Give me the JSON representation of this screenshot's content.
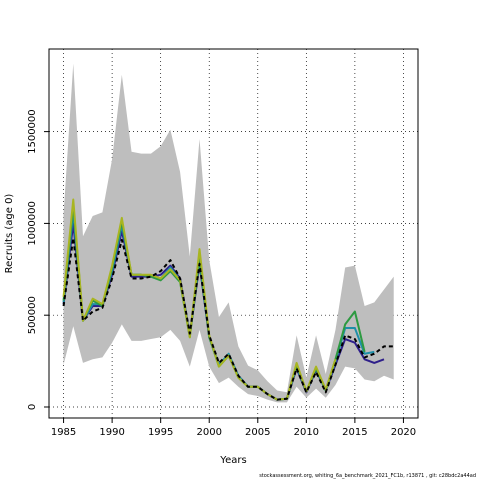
{
  "chart_data": {
    "type": "line",
    "title": "",
    "xlabel": "Years",
    "ylabel": "Recruits (age 0)",
    "xlim": [
      1983.5,
      2021.5
    ],
    "ylim": [
      -60000,
      1950000
    ],
    "x_ticks": [
      1985,
      1990,
      1995,
      2000,
      2005,
      2010,
      2015,
      2020
    ],
    "y_ticks": [
      0,
      500000,
      1000000,
      1500000
    ],
    "grid": true,
    "legend": "none",
    "band": {
      "color": "#bebebe",
      "x": [
        1985,
        1986,
        1987,
        1988,
        1989,
        1990,
        1991,
        1992,
        1993,
        1994,
        1995,
        1996,
        1997,
        1998,
        1999,
        2000,
        2001,
        2002,
        2003,
        2004,
        2005,
        2006,
        2007,
        2008,
        2009,
        2010,
        2011,
        2012,
        2013,
        2014,
        2015,
        2016,
        2017,
        2018,
        2019
      ],
      "upper": [
        1050000,
        1870000,
        930000,
        1040000,
        1060000,
        1350000,
        1810000,
        1390000,
        1380000,
        1380000,
        1420000,
        1510000,
        1280000,
        820000,
        1460000,
        800000,
        490000,
        570000,
        330000,
        225000,
        200000,
        140000,
        90000,
        80000,
        390000,
        160000,
        390000,
        180000,
        420000,
        760000,
        770000,
        550000,
        570000,
        640000,
        710000
      ],
      "lower": [
        230000,
        440000,
        240000,
        260000,
        270000,
        350000,
        450000,
        360000,
        360000,
        370000,
        380000,
        420000,
        360000,
        220000,
        420000,
        220000,
        130000,
        160000,
        110000,
        70000,
        60000,
        40000,
        25000,
        25000,
        110000,
        50000,
        100000,
        50000,
        120000,
        220000,
        210000,
        150000,
        140000,
        170000,
        150000
      ]
    },
    "series": [
      {
        "color": "#000000",
        "dashed": true,
        "x": [
          1985,
          1986,
          1987,
          1988,
          1989,
          1990,
          1991,
          1992,
          1993,
          1994,
          1995,
          1996,
          1997,
          1998,
          1999,
          2000,
          2001,
          2002,
          2003,
          2004,
          2005,
          2006,
          2007,
          2008,
          2009,
          2010,
          2011,
          2012,
          2013,
          2014,
          2015,
          2016,
          2017,
          2018,
          2019
        ],
        "values": [
          550000,
          920000,
          470000,
          520000,
          540000,
          700000,
          910000,
          700000,
          700000,
          710000,
          740000,
          800000,
          700000,
          400000,
          780000,
          390000,
          240000,
          290000,
          170000,
          110000,
          110000,
          70000,
          40000,
          45000,
          210000,
          80000,
          190000,
          80000,
          230000,
          390000,
          370000,
          270000,
          290000,
          330000,
          330000
        ]
      },
      {
        "color": "#2e1f8a",
        "dashed": false,
        "x": [
          1985,
          1986,
          1987,
          1988,
          1989,
          1990,
          1991,
          1992,
          1993,
          1994,
          1995,
          1996,
          1997,
          1998,
          1999,
          2000,
          2001,
          2002,
          2003,
          2004,
          2005,
          2006,
          2007,
          2008,
          2009,
          2010,
          2011,
          2012,
          2013,
          2014,
          2015,
          2016,
          2017,
          2018
        ],
        "values": [
          560000,
          1000000,
          470000,
          550000,
          550000,
          720000,
          960000,
          710000,
          710000,
          710000,
          720000,
          770000,
          700000,
          390000,
          780000,
          380000,
          230000,
          280000,
          170000,
          110000,
          110000,
          70000,
          40000,
          45000,
          210000,
          80000,
          200000,
          90000,
          230000,
          370000,
          350000,
          260000,
          240000,
          260000
        ]
      },
      {
        "color": "#1e8fa8",
        "dashed": false,
        "x": [
          1985,
          1986,
          1987,
          1988,
          1989,
          1990,
          1991,
          1992,
          1993,
          1994,
          1995,
          1996,
          1997,
          1998,
          1999,
          2000,
          2001,
          2002,
          2003,
          2004,
          2005,
          2006,
          2007,
          2008,
          2009,
          2010,
          2011,
          2012,
          2013,
          2014,
          2015,
          2016,
          2017
        ],
        "values": [
          570000,
          1060000,
          470000,
          560000,
          560000,
          740000,
          990000,
          720000,
          720000,
          710000,
          700000,
          760000,
          690000,
          390000,
          800000,
          380000,
          230000,
          290000,
          170000,
          110000,
          110000,
          70000,
          40000,
          45000,
          220000,
          85000,
          210000,
          90000,
          250000,
          430000,
          430000,
          290000,
          300000
        ]
      },
      {
        "color": "#2d9a41",
        "dashed": false,
        "x": [
          1985,
          1986,
          1987,
          1988,
          1989,
          1990,
          1991,
          1992,
          1993,
          1994,
          1995,
          1996,
          1997,
          1998,
          1999,
          2000,
          2001,
          2002,
          2003,
          2004,
          2005,
          2006,
          2007,
          2008,
          2009,
          2010,
          2011,
          2012,
          2013,
          2014,
          2015,
          2016
        ],
        "values": [
          580000,
          1100000,
          470000,
          580000,
          550000,
          760000,
          1010000,
          720000,
          720000,
          710000,
          690000,
          740000,
          680000,
          380000,
          820000,
          380000,
          220000,
          280000,
          160000,
          110000,
          110000,
          70000,
          40000,
          45000,
          230000,
          85000,
          210000,
          90000,
          260000,
          450000,
          520000,
          300000
        ]
      },
      {
        "color": "#a8b521",
        "dashed": false,
        "x": [
          1985,
          1986,
          1987,
          1988,
          1989,
          1990,
          1991,
          1992,
          1993,
          1994,
          1995,
          1996,
          1997,
          1998,
          1999,
          2000,
          2001,
          2002,
          2003,
          2004,
          2005,
          2006,
          2007,
          2008,
          2009,
          2010,
          2011,
          2012,
          2013
        ],
        "values": [
          600000,
          1130000,
          470000,
          590000,
          560000,
          770000,
          1030000,
          720000,
          720000,
          720000,
          700000,
          750000,
          690000,
          380000,
          860000,
          390000,
          220000,
          280000,
          160000,
          110000,
          110000,
          70000,
          40000,
          45000,
          240000,
          85000,
          220000,
          95000,
          260000
        ]
      }
    ]
  },
  "footer_text": "stockassessment.org,  whiting_6a_benchmark_2021_FC1b,  r13871 ,  git:  c28bdc2a44ad"
}
